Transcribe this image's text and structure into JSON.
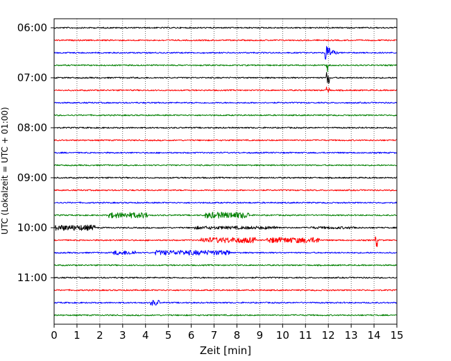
{
  "chart_data": {
    "type": "line",
    "title": "",
    "xlabel": "Zeit  [min]",
    "ylabel": "UTC (Lokalzeit = UTC + 01:00)",
    "xlim": [
      0,
      15
    ],
    "x_ticks": [
      0,
      1,
      2,
      3,
      4,
      5,
      6,
      7,
      8,
      9,
      10,
      11,
      12,
      13,
      14,
      15
    ],
    "x_tick_labels": [
      "0",
      "1",
      "2",
      "3",
      "4",
      "5",
      "6",
      "7",
      "8",
      "9",
      "10",
      "11",
      "12",
      "13",
      "14",
      "15"
    ],
    "y_tick_labels": [
      {
        "row": 0,
        "label": "06:00"
      },
      {
        "row": 4,
        "label": "07:00"
      },
      {
        "row": 8,
        "label": "08:00"
      },
      {
        "row": 12,
        "label": "09:00"
      },
      {
        "row": 16,
        "label": "10:00"
      },
      {
        "row": 20,
        "label": "11:00"
      }
    ],
    "row_minutes": 15,
    "grid": "vertical dotted",
    "colors": [
      "#000000",
      "#ff0000",
      "#0000ff",
      "#008000"
    ],
    "trace_count": 24,
    "events": [
      {
        "row": 2,
        "start": 11.85,
        "end": 12.6,
        "amplitude": 1.9,
        "kind": "earthquake"
      },
      {
        "row": 3,
        "start": 11.9,
        "end": 12.05,
        "amplitude": 1.2,
        "kind": "spike"
      },
      {
        "row": 4,
        "start": 11.9,
        "end": 12.05,
        "amplitude": 1.0,
        "kind": "spike"
      },
      {
        "row": 5,
        "start": 11.9,
        "end": 12.05,
        "amplitude": 0.8,
        "kind": "spike"
      },
      {
        "row": 15,
        "start": 2.4,
        "end": 4.1,
        "amplitude": 0.45,
        "kind": "burst"
      },
      {
        "row": 15,
        "start": 6.6,
        "end": 8.55,
        "amplitude": 0.5,
        "kind": "burst"
      },
      {
        "row": 16,
        "start": 0.05,
        "end": 1.8,
        "amplitude": 0.45,
        "kind": "burst"
      },
      {
        "row": 16,
        "start": 6.1,
        "end": 9.9,
        "amplitude": 0.25,
        "kind": "burst"
      },
      {
        "row": 16,
        "start": 11.2,
        "end": 13.3,
        "amplitude": 0.2,
        "kind": "burst"
      },
      {
        "row": 17,
        "start": 6.4,
        "end": 8.8,
        "amplitude": 0.45,
        "kind": "burst"
      },
      {
        "row": 17,
        "start": 9.3,
        "end": 11.6,
        "amplitude": 0.45,
        "kind": "burst"
      },
      {
        "row": 17,
        "start": 14.05,
        "end": 14.15,
        "amplitude": 1.1,
        "kind": "spike"
      },
      {
        "row": 18,
        "start": 2.6,
        "end": 3.6,
        "amplitude": 0.35,
        "kind": "burst"
      },
      {
        "row": 18,
        "start": 4.4,
        "end": 7.7,
        "amplitude": 0.4,
        "kind": "burst"
      },
      {
        "row": 22,
        "start": 4.2,
        "end": 4.6,
        "amplitude": 0.45,
        "kind": "burst"
      }
    ]
  }
}
